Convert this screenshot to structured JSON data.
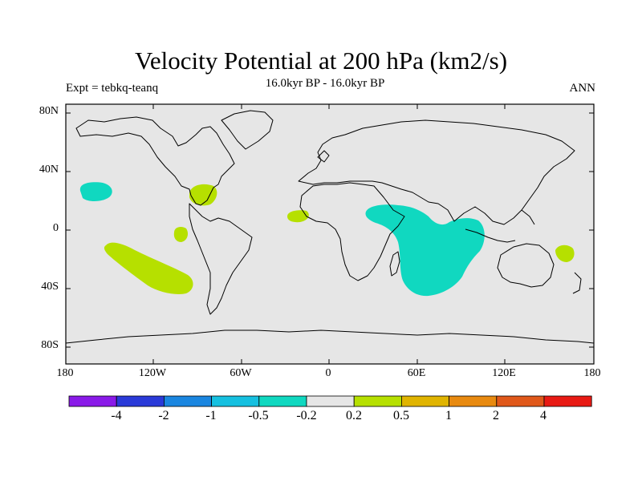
{
  "title": "Velocity Potential at 200 hPa (km2/s)",
  "subtitle": "16.0kyr BP - 16.0kyr BP",
  "left_label": "Expt = tebkq-teanq",
  "right_label": "ANN",
  "lat_ticks": [
    "80N",
    "40N",
    "0",
    "40S",
    "80S"
  ],
  "lon_ticks": [
    "180",
    "120W",
    "60W",
    "0",
    "60E",
    "120E",
    "180"
  ],
  "colorbar": {
    "colors": [
      "#8a1ae8",
      "#2a3ad8",
      "#1a86e0",
      "#16c0e0",
      "#10d8c0",
      "#e6e6e6",
      "#b6e000",
      "#e0b400",
      "#e88a10",
      "#e0581a",
      "#e81a14",
      "#ee0d0d"
    ],
    "labels": [
      "-4",
      "-2",
      "-1",
      "-0.5",
      "-0.2",
      "0.2",
      "0.5",
      "1",
      "2",
      "4"
    ]
  },
  "colors": {
    "ocean_land_bg": "#e6e6e6",
    "negative_fill": "#10d8c0",
    "negative_fill_2": "#19c9d9",
    "positive_fill": "#b6e000"
  }
}
